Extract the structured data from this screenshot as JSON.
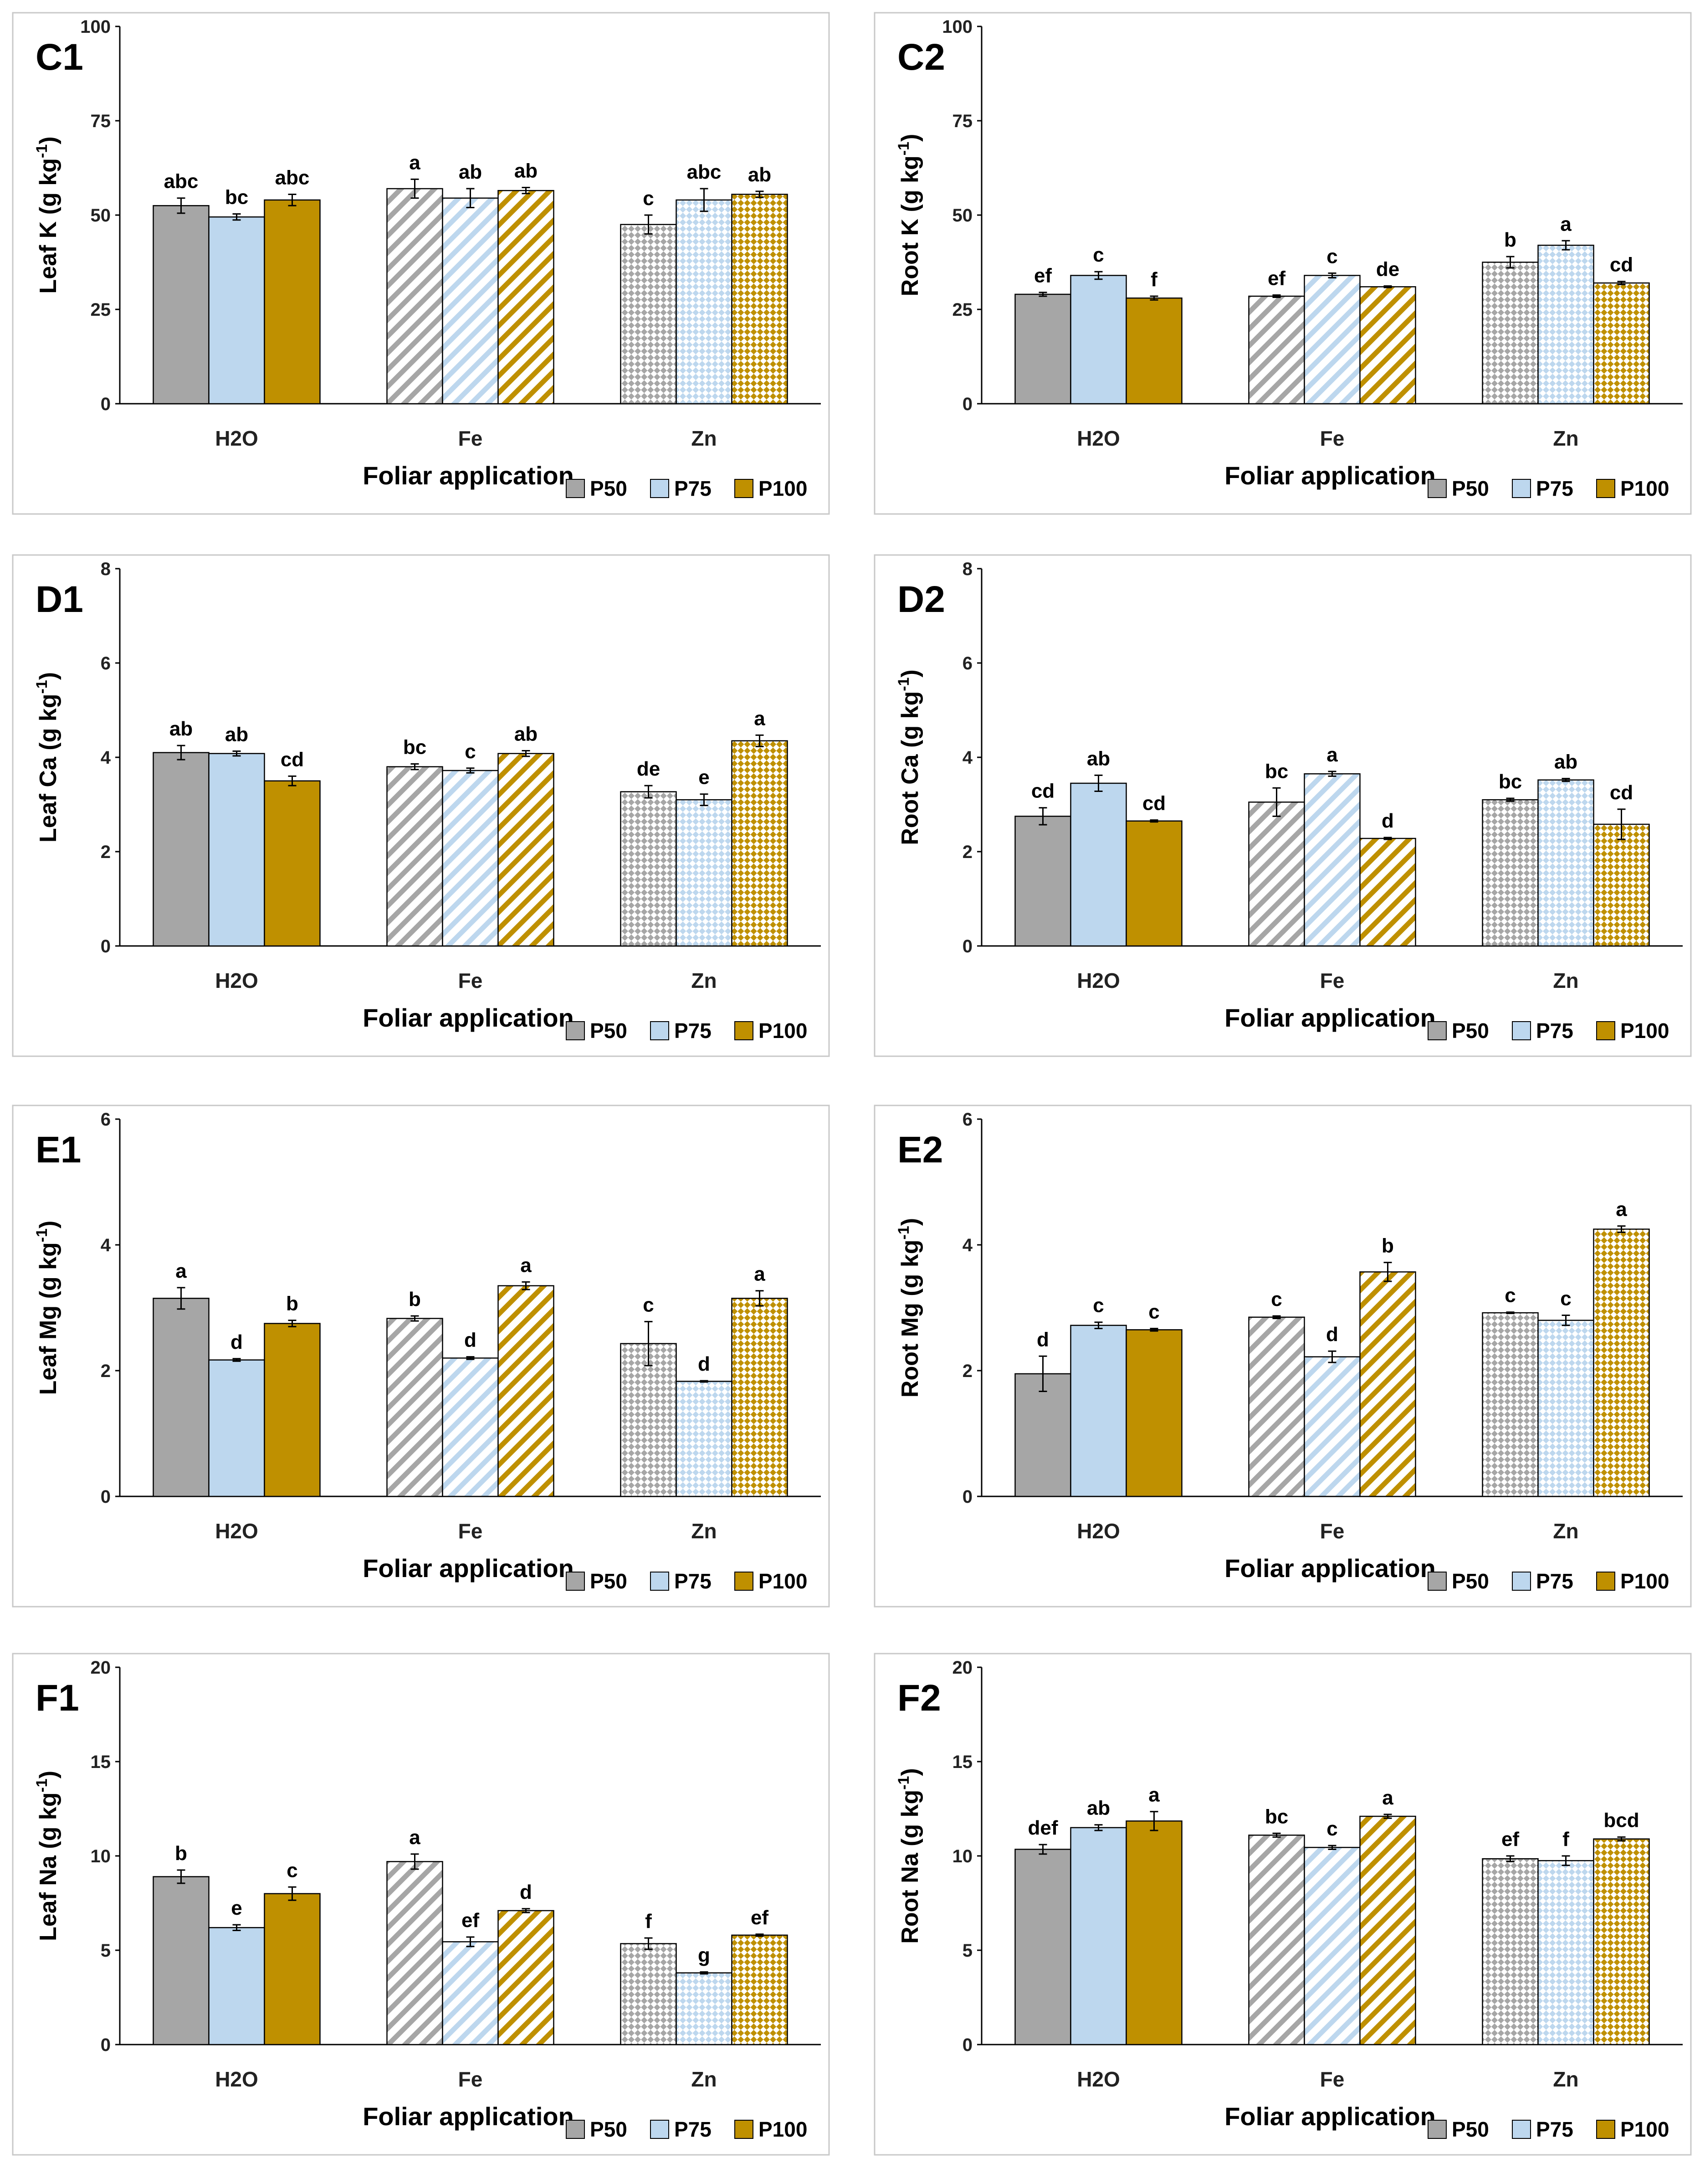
{
  "colors": {
    "P50": "#a6a6a6",
    "P75": "#bdd7ee",
    "P100": "#bf9000",
    "frame": "#c8c8c8",
    "axis": "#000000"
  },
  "chart_data": [
    {
      "type": "bar",
      "panel": "C1",
      "ylabel_main": "Leaf K (g kg",
      "ylabel_exp": "-1",
      "ylabel_close": ")",
      "xlabel": "Foliar application",
      "categories": [
        "H2O",
        "Fe",
        "Zn"
      ],
      "ylim": [
        0,
        100
      ],
      "yticks": [
        "0",
        "25",
        "50",
        "75",
        "100"
      ],
      "legend": [
        "P50",
        "P75",
        "P100"
      ],
      "series": [
        {
          "name": "P50",
          "values": [
            52.5,
            57,
            47.5
          ],
          "errors": [
            2,
            2.5,
            2.5
          ],
          "letters": [
            "abc",
            "a",
            "c"
          ]
        },
        {
          "name": "P75",
          "values": [
            49.5,
            54.5,
            54
          ],
          "errors": [
            0.8,
            2.5,
            3
          ],
          "letters": [
            "bc",
            "ab",
            "abc"
          ]
        },
        {
          "name": "P100",
          "values": [
            54,
            56.5,
            55.5
          ],
          "errors": [
            1.5,
            0.8,
            0.8
          ],
          "letters": [
            "abc",
            "ab",
            "ab"
          ]
        }
      ]
    },
    {
      "type": "bar",
      "panel": "C2",
      "ylabel_main": "Root K (g kg",
      "ylabel_exp": "-1",
      "ylabel_close": ")",
      "xlabel": "Foliar application",
      "categories": [
        "H2O",
        "Fe",
        "Zn"
      ],
      "ylim": [
        0,
        100
      ],
      "yticks": [
        "0",
        "25",
        "50",
        "75",
        "100"
      ],
      "legend": [
        "P50",
        "P75",
        "P100"
      ],
      "series": [
        {
          "name": "P50",
          "values": [
            29,
            28.5,
            37.5
          ],
          "errors": [
            0.5,
            0.3,
            1.5
          ],
          "letters": [
            "ef",
            "ef",
            "b"
          ]
        },
        {
          "name": "P75",
          "values": [
            34,
            34,
            42
          ],
          "errors": [
            1,
            0.6,
            1.2
          ],
          "letters": [
            "c",
            "c",
            "a"
          ]
        },
        {
          "name": "P100",
          "values": [
            28,
            31,
            32
          ],
          "errors": [
            0.5,
            0.2,
            0.4
          ],
          "letters": [
            "f",
            "de",
            "cd"
          ]
        }
      ]
    },
    {
      "type": "bar",
      "panel": "D1",
      "ylabel_main": "Leaf Ca (g kg",
      "ylabel_exp": "-1",
      "ylabel_close": ")",
      "xlabel": "Foliar application",
      "categories": [
        "H2O",
        "Fe",
        "Zn"
      ],
      "ylim": [
        0,
        8
      ],
      "yticks": [
        "0",
        "2",
        "4",
        "6",
        "8"
      ],
      "legend": [
        "P50",
        "P75",
        "P100"
      ],
      "series": [
        {
          "name": "P50",
          "values": [
            4.1,
            3.8,
            3.27
          ],
          "errors": [
            0.15,
            0.06,
            0.13
          ],
          "letters": [
            "ab",
            "bc",
            "de"
          ]
        },
        {
          "name": "P75",
          "values": [
            4.08,
            3.72,
            3.1
          ],
          "errors": [
            0.05,
            0.05,
            0.12
          ],
          "letters": [
            "ab",
            "c",
            "e"
          ]
        },
        {
          "name": "P100",
          "values": [
            3.5,
            4.08,
            4.35
          ],
          "errors": [
            0.1,
            0.06,
            0.12
          ],
          "letters": [
            "cd",
            "ab",
            "a"
          ]
        }
      ]
    },
    {
      "type": "bar",
      "panel": "D2",
      "ylabel_main": "Root Ca (g kg",
      "ylabel_exp": "-1",
      "ylabel_close": ")",
      "xlabel": "Foliar application",
      "categories": [
        "H2O",
        "Fe",
        "Zn"
      ],
      "ylim": [
        0,
        8
      ],
      "yticks": [
        "0",
        "2",
        "4",
        "6",
        "8"
      ],
      "legend": [
        "P50",
        "P75",
        "P100"
      ],
      "series": [
        {
          "name": "P50",
          "values": [
            2.75,
            3.05,
            3.1
          ],
          "errors": [
            0.18,
            0.3,
            0.03
          ],
          "letters": [
            "cd",
            "bc",
            "bc"
          ]
        },
        {
          "name": "P75",
          "values": [
            3.45,
            3.65,
            3.52
          ],
          "errors": [
            0.17,
            0.05,
            0.03
          ],
          "letters": [
            "ab",
            "a",
            "ab"
          ]
        },
        {
          "name": "P100",
          "values": [
            2.65,
            2.28,
            2.58
          ],
          "errors": [
            0.02,
            0.02,
            0.32
          ],
          "letters": [
            "cd",
            "d",
            "cd"
          ]
        }
      ]
    },
    {
      "type": "bar",
      "panel": "E1",
      "ylabel_main": "Leaf Mg (g kg",
      "ylabel_exp": "-1",
      "ylabel_close": ")",
      "xlabel": "Foliar application",
      "categories": [
        "H2O",
        "Fe",
        "Zn"
      ],
      "ylim": [
        0,
        6
      ],
      "yticks": [
        "0",
        "2",
        "4",
        "6"
      ],
      "legend": [
        "P50",
        "P75",
        "P100"
      ],
      "series": [
        {
          "name": "P50",
          "values": [
            3.15,
            2.83,
            2.43
          ],
          "errors": [
            0.17,
            0.04,
            0.35
          ],
          "letters": [
            "a",
            "b",
            "c"
          ]
        },
        {
          "name": "P75",
          "values": [
            2.17,
            2.2,
            1.83
          ],
          "errors": [
            0.02,
            0.02,
            0.01
          ],
          "letters": [
            "d",
            "d",
            "d"
          ]
        },
        {
          "name": "P100",
          "values": [
            2.75,
            3.35,
            3.15
          ],
          "errors": [
            0.05,
            0.06,
            0.12
          ],
          "letters": [
            "b",
            "a",
            "a"
          ]
        }
      ]
    },
    {
      "type": "bar",
      "panel": "E2",
      "ylabel_main": "Root Mg (g kg",
      "ylabel_exp": "-1",
      "ylabel_close": ")",
      "xlabel": "Foliar application",
      "categories": [
        "H2O",
        "Fe",
        "Zn"
      ],
      "ylim": [
        0,
        6
      ],
      "yticks": [
        "0",
        "2",
        "4",
        "6"
      ],
      "legend": [
        "P50",
        "P75",
        "P100"
      ],
      "series": [
        {
          "name": "P50",
          "values": [
            1.95,
            2.85,
            2.92
          ],
          "errors": [
            0.28,
            0.02,
            0.01
          ],
          "letters": [
            "d",
            "c",
            "c"
          ]
        },
        {
          "name": "P75",
          "values": [
            2.72,
            2.22,
            2.8
          ],
          "errors": [
            0.05,
            0.09,
            0.08
          ],
          "letters": [
            "c",
            "d",
            "c"
          ]
        },
        {
          "name": "P100",
          "values": [
            2.65,
            3.57,
            4.25
          ],
          "errors": [
            0.02,
            0.15,
            0.05
          ],
          "letters": [
            "c",
            "b",
            "a"
          ]
        }
      ]
    },
    {
      "type": "bar",
      "panel": "F1",
      "ylabel_main": "Leaf Na (g kg",
      "ylabel_exp": "-1",
      "ylabel_close": ")",
      "xlabel": "Foliar application",
      "categories": [
        "H2O",
        "Fe",
        "Zn"
      ],
      "ylim": [
        0,
        20
      ],
      "yticks": [
        "0",
        "5",
        "10",
        "15",
        "20"
      ],
      "legend": [
        "P50",
        "P75",
        "P100"
      ],
      "series": [
        {
          "name": "P50",
          "values": [
            8.9,
            9.7,
            5.35
          ],
          "errors": [
            0.35,
            0.4,
            0.3
          ],
          "letters": [
            "b",
            "a",
            "f"
          ]
        },
        {
          "name": "P75",
          "values": [
            6.2,
            5.45,
            3.8
          ],
          "errors": [
            0.15,
            0.25,
            0.05
          ],
          "letters": [
            "e",
            "ef",
            "g"
          ]
        },
        {
          "name": "P100",
          "values": [
            8.0,
            7.1,
            5.8
          ],
          "errors": [
            0.35,
            0.1,
            0.05
          ],
          "letters": [
            "c",
            "d",
            "ef"
          ]
        }
      ]
    },
    {
      "type": "bar",
      "panel": "F2",
      "ylabel_main": "Root Na (g kg",
      "ylabel_exp": "-1",
      "ylabel_close": ")",
      "xlabel": "Foliar application",
      "categories": [
        "H2O",
        "Fe",
        "Zn"
      ],
      "ylim": [
        0,
        20
      ],
      "yticks": [
        "0",
        "5",
        "10",
        "15",
        "20"
      ],
      "legend": [
        "P50",
        "P75",
        "P100"
      ],
      "series": [
        {
          "name": "P50",
          "values": [
            10.35,
            11.1,
            9.85
          ],
          "errors": [
            0.25,
            0.1,
            0.15
          ],
          "letters": [
            "def",
            "bc",
            "ef"
          ]
        },
        {
          "name": "P75",
          "values": [
            11.5,
            10.45,
            9.75
          ],
          "errors": [
            0.15,
            0.1,
            0.25
          ],
          "letters": [
            "ab",
            "c",
            "f"
          ]
        },
        {
          "name": "P100",
          "values": [
            11.85,
            12.1,
            10.9
          ],
          "errors": [
            0.5,
            0.1,
            0.1
          ],
          "letters": [
            "a",
            "a",
            "bcd"
          ]
        }
      ]
    }
  ]
}
